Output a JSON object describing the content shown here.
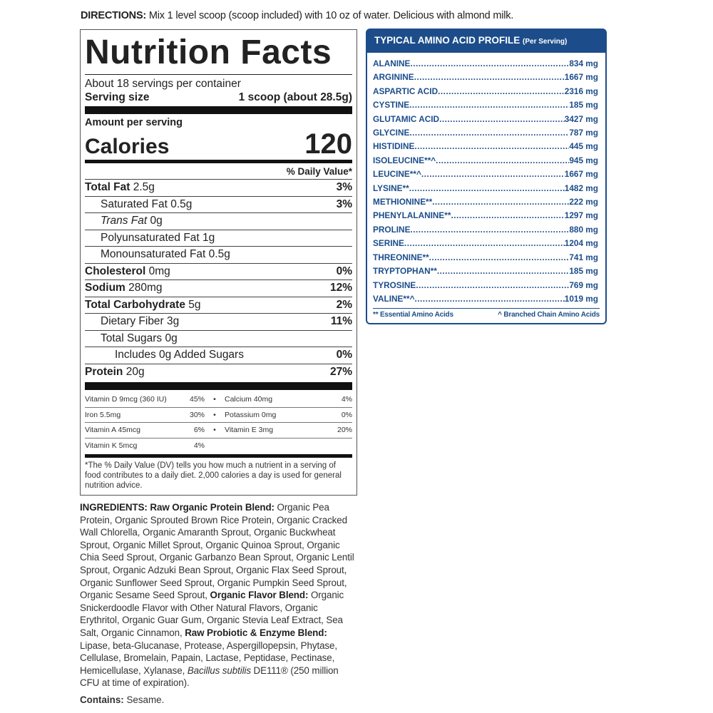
{
  "directions": {
    "label": "DIRECTIONS:",
    "text": " Mix 1 level scoop (scoop included) with 10 oz of water. Delicious with almond milk."
  },
  "nutrition": {
    "title": "Nutrition Facts",
    "servings": "About 18 servings per container",
    "serving_size_label": "Serving size",
    "serving_size_value": "1 scoop (about 28.5g)",
    "amount_label": "Amount per serving",
    "calories_label": "Calories",
    "calories_value": "120",
    "dv_header": "% Daily Value*",
    "rows": [
      {
        "name": "Total Fat",
        "amount": "2.5g",
        "dv": "3%",
        "bold": true,
        "indent": 0
      },
      {
        "name": "Saturated Fat",
        "amount": "0.5g",
        "dv": "3%",
        "bold": false,
        "indent": 1
      },
      {
        "name": "Trans Fat",
        "amount": "0g",
        "dv": "",
        "bold": false,
        "indent": 1,
        "italic": true
      },
      {
        "name": "Polyunsaturated Fat",
        "amount": "1g",
        "dv": "",
        "bold": false,
        "indent": 1
      },
      {
        "name": "Monounsaturated Fat",
        "amount": "0.5g",
        "dv": "",
        "bold": false,
        "indent": 1
      },
      {
        "name": "Cholesterol",
        "amount": "0mg",
        "dv": "0%",
        "bold": true,
        "indent": 0
      },
      {
        "name": "Sodium",
        "amount": "280mg",
        "dv": "12%",
        "bold": true,
        "indent": 0
      },
      {
        "name": "Total Carbohydrate",
        "amount": "5g",
        "dv": "2%",
        "bold": true,
        "indent": 0
      },
      {
        "name": "Dietary Fiber",
        "amount": "3g",
        "dv": "11%",
        "bold": false,
        "indent": 1
      },
      {
        "name": "Total Sugars",
        "amount": "0g",
        "dv": "",
        "bold": false,
        "indent": 1
      },
      {
        "name": "Includes 0g Added Sugars",
        "amount": "",
        "dv": "0%",
        "bold": false,
        "indent": 2
      },
      {
        "name": "Protein",
        "amount": "20g",
        "dv": "27%",
        "bold": true,
        "indent": 0
      }
    ],
    "vitamins": [
      [
        {
          "name": "Vitamin D 9mcg (360 IU)",
          "dv": "45%"
        },
        {
          "name": "Calcium 40mg",
          "dv": "4%"
        }
      ],
      [
        {
          "name": "Iron 5.5mg",
          "dv": "30%"
        },
        {
          "name": "Potassium 0mg",
          "dv": "0%"
        }
      ],
      [
        {
          "name": "Vitamin A 45mcg",
          "dv": "6%"
        },
        {
          "name": "Vitamin E 3mg",
          "dv": "20%"
        }
      ],
      [
        {
          "name": "Vitamin K 5mcg",
          "dv": "4%"
        }
      ]
    ],
    "footnote": "*The % Daily Value (DV) tells you how much a nutrient in a serving of food contributes to a daily diet. 2,000 calories a day is used for general nutrition advice."
  },
  "amino": {
    "title": "TYPICAL AMINO ACID PROFILE",
    "subtitle": "(Per Serving)",
    "items": [
      {
        "name": "ALANINE",
        "value": "834 mg"
      },
      {
        "name": "ARGININE",
        "value": "1667 mg"
      },
      {
        "name": "ASPARTIC ACID",
        "value": "2316 mg"
      },
      {
        "name": "CYSTINE",
        "value": "185 mg"
      },
      {
        "name": "GLUTAMIC ACID",
        "value": "3427 mg"
      },
      {
        "name": "GLYCINE",
        "value": "787 mg"
      },
      {
        "name": "HISTIDINE",
        "value": "445 mg"
      },
      {
        "name": "ISOLEUCINE**^",
        "value": "945 mg"
      },
      {
        "name": "LEUCINE**^",
        "value": "1667 mg"
      },
      {
        "name": "LYSINE**",
        "value": "1482 mg"
      },
      {
        "name": "METHIONINE**",
        "value": "222 mg"
      },
      {
        "name": "PHENYLALANINE**",
        "value": "1297 mg"
      },
      {
        "name": "PROLINE",
        "value": "880 mg"
      },
      {
        "name": "SERINE",
        "value": "1204 mg"
      },
      {
        "name": "THREONINE**",
        "value": "741 mg"
      },
      {
        "name": "TRYPTOPHAN**",
        "value": "185 mg"
      },
      {
        "name": "TYROSINE",
        "value": "769 mg"
      },
      {
        "name": "VALINE**^",
        "value": "1019 mg"
      }
    ],
    "legend_essential": "** Essential Amino Acids",
    "legend_bcaa": "^ Branched Chain Amino Acids"
  },
  "ingredients": {
    "label": "INGREDIENTS:",
    "parts": [
      {
        "text": " Raw Organic Protein Blend:",
        "bold": true
      },
      {
        "text": " Organic Pea Protein, Organic Sprouted Brown Rice Protein, Organic Cracked Wall Chlorella, Organic Amaranth Sprout, Organic Buckwheat Sprout, Organic Millet Sprout, Organic Quinoa Sprout, Organic Chia Seed Sprout, Organic Garbanzo Bean Sprout, Organic Lentil Sprout, Organic Adzuki Bean Sprout, Organic Flax Seed Sprout, Organic Sunflower Seed Sprout, Organic Pumpkin Seed Sprout, Organic Sesame Seed Sprout, "
      },
      {
        "text": "Organic Flavor Blend:",
        "bold": true
      },
      {
        "text": " Organic Snickerdoodle Flavor with Other Natural Flavors, Organic Erythritol, Organic Guar Gum, Organic Stevia Leaf Extract, Sea Salt, Organic Cinnamon, "
      },
      {
        "text": "Raw Probiotic & Enzyme Blend:",
        "bold": true
      },
      {
        "text": " Lipase, beta-Glucanase, Protease, Aspergillopepsin, Phytase, Cellulase, Bromelain, Papain, Lactase, Peptidase, Pectinase, Hemicellulase, Xylanase, "
      },
      {
        "text": "Bacillus subtilis",
        "italic": true
      },
      {
        "text": " DE111® (250 million CFU at time of expiration)."
      }
    ],
    "contains_label": "Contains:",
    "contains_value": " Sesame."
  }
}
